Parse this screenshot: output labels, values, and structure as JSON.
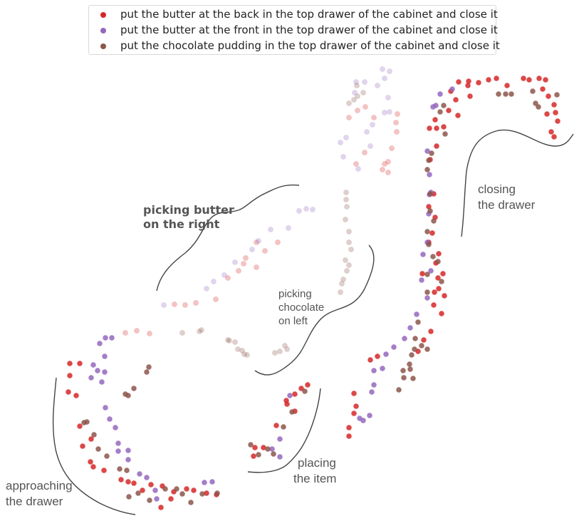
{
  "chart_data": {
    "type": "scatter",
    "title": "",
    "xlabel": "",
    "ylabel": "",
    "grid": false,
    "legend_position": "top-center",
    "series": [
      {
        "name": "put the butter at the back in the top drawer of the cabinet and close it",
        "color": "#d62728",
        "points": [
          [
            644,
            115
          ],
          [
            658,
            114
          ],
          [
            672,
            116
          ],
          [
            686,
            112
          ],
          [
            697,
            110
          ],
          [
            712,
            120
          ],
          [
            735,
            110
          ],
          [
            743,
            112
          ],
          [
            757,
            110
          ],
          [
            766,
            112
          ],
          [
            762,
            125
          ],
          [
            770,
            135
          ],
          [
            778,
            147
          ],
          [
            768,
            160
          ],
          [
            780,
            158
          ],
          [
            783,
            170
          ],
          [
            774,
            185
          ],
          [
            778,
            192
          ],
          [
            657,
            120
          ],
          [
            660,
            135
          ],
          [
            640,
            140
          ],
          [
            630,
            155
          ],
          [
            643,
            162
          ],
          [
            633,
            128
          ],
          [
            603,
            180
          ],
          [
            611,
            168
          ],
          [
            604,
            224
          ],
          [
            613,
            205
          ],
          [
            609,
            272
          ],
          [
            602,
            290
          ],
          [
            611,
            305
          ],
          [
            607,
            327
          ],
          [
            616,
            356
          ],
          [
            612,
            369
          ],
          [
            593,
            384
          ],
          [
            622,
            384
          ],
          [
            616,
            405
          ],
          [
            624,
            415
          ],
          [
            609,
            428
          ],
          [
            620,
            440
          ],
          [
            605,
            465
          ],
          [
            595,
            477
          ],
          [
            587,
            493
          ],
          [
            520,
            505
          ],
          [
            530,
            500
          ],
          [
            497,
            552
          ],
          [
            500,
            570
          ],
          [
            497,
            580
          ],
          [
            490,
            612
          ],
          [
            490,
            600
          ],
          [
            610,
            410
          ],
          [
            615,
            390
          ],
          [
            602,
            340
          ],
          [
            623,
            178
          ],
          [
            613,
            180
          ],
          [
            98,
            510
          ],
          [
            112,
            510
          ],
          [
            98,
            527
          ],
          [
            96,
            550
          ],
          [
            107,
            555
          ],
          [
            112,
            598
          ],
          [
            128,
            616
          ],
          [
            116,
            626
          ],
          [
            127,
            648
          ],
          [
            131,
            655
          ],
          [
            146,
            660
          ],
          [
            170,
            673
          ],
          [
            180,
            676
          ],
          [
            188,
            678
          ],
          [
            200,
            688
          ],
          [
            212,
            680
          ],
          [
            228,
            682
          ],
          [
            240,
            700
          ],
          [
            244,
            690
          ],
          [
            262,
            686
          ],
          [
            272,
            688
          ],
          [
            290,
            692
          ],
          [
            304,
            694
          ],
          [
            226,
            712
          ],
          [
            432,
            540
          ],
          [
            423,
            545
          ],
          [
            414,
            553
          ],
          [
            403,
            567
          ],
          [
            414,
            577
          ],
          [
            388,
            597
          ],
          [
            370,
            628
          ],
          [
            358,
            628
          ],
          [
            356,
            640
          ],
          [
            402,
            562
          ]
        ]
      },
      {
        "name": "put the butter at the front in the top drawer of the cabinet and close it",
        "color": "#9467bd",
        "points": [
          [
            618,
            132
          ],
          [
            635,
            125
          ],
          [
            612,
            148
          ],
          [
            608,
            150
          ],
          [
            600,
            212
          ],
          [
            603,
            245
          ],
          [
            605,
            270
          ],
          [
            602,
            300
          ],
          [
            600,
            340
          ],
          [
            605,
            380
          ],
          [
            592,
            393
          ],
          [
            600,
            418
          ],
          [
            585,
            441
          ],
          [
            576,
            460
          ],
          [
            568,
            475
          ],
          [
            553,
            487
          ],
          [
            542,
            497
          ],
          [
            525,
            520
          ],
          [
            537,
            517
          ],
          [
            525,
            540
          ],
          [
            522,
            550
          ],
          [
            505,
            587
          ],
          [
            510,
            590
          ],
          [
            519,
            583
          ],
          [
            594,
            357
          ],
          [
            603,
            273
          ],
          [
            148,
            474
          ],
          [
            157,
            474
          ],
          [
            140,
            482
          ],
          [
            147,
            500
          ],
          [
            131,
            512
          ],
          [
            137,
            520
          ],
          [
            147,
            522
          ],
          [
            128,
            530
          ],
          [
            143,
            536
          ],
          [
            148,
            572
          ],
          [
            154,
            588
          ],
          [
            162,
            600
          ],
          [
            166,
            622
          ],
          [
            166,
            633
          ],
          [
            180,
            632
          ],
          [
            180,
            645
          ],
          [
            196,
            665
          ],
          [
            206,
            670
          ],
          [
            218,
            688
          ],
          [
            220,
            700
          ],
          [
            287,
            677
          ],
          [
            298,
            676
          ],
          [
            382,
            630
          ],
          [
            393,
            616
          ],
          [
            393,
            641
          ],
          [
            407,
            555
          ]
        ]
      },
      {
        "name": "put the chocolate pudding in the top drawer of the cabinet and close it",
        "color": "#8c564b",
        "points": [
          [
            700,
            132
          ],
          [
            710,
            132
          ],
          [
            718,
            132
          ],
          [
            748,
            128
          ],
          [
            752,
            145
          ],
          [
            756,
            150
          ],
          [
            782,
            133
          ],
          [
            618,
            157
          ],
          [
            623,
            148
          ],
          [
            625,
            188
          ],
          [
            606,
            215
          ],
          [
            602,
            225
          ],
          [
            600,
            238
          ],
          [
            604,
            272
          ],
          [
            604,
            296
          ],
          [
            609,
            310
          ],
          [
            600,
            325
          ],
          [
            602,
            343
          ],
          [
            608,
            360
          ],
          [
            615,
            367
          ],
          [
            600,
            385
          ],
          [
            620,
            395
          ],
          [
            600,
            410
          ],
          [
            587,
            452
          ],
          [
            583,
            475
          ],
          [
            582,
            490
          ],
          [
            578,
            498
          ],
          [
            575,
            511
          ],
          [
            566,
            520
          ],
          [
            560,
            547
          ],
          [
            576,
            518
          ],
          [
            567,
            530
          ],
          [
            580,
            531
          ],
          [
            600,
            490
          ],
          [
            592,
            485
          ],
          [
            209,
            515
          ],
          [
            206,
            522
          ],
          [
            188,
            545
          ],
          [
            176,
            553
          ],
          [
            180,
            555
          ],
          [
            118,
            593
          ],
          [
            122,
            592
          ],
          [
            132,
            610
          ],
          [
            150,
            640
          ],
          [
            138,
            630
          ],
          [
            168,
            658
          ],
          [
            178,
            660
          ],
          [
            181,
            697
          ],
          [
            194,
            692
          ],
          [
            210,
            702
          ],
          [
            232,
            686
          ],
          [
            248,
            686
          ],
          [
            256,
            693
          ],
          [
            268,
            705
          ],
          [
            284,
            693
          ],
          [
            305,
            692
          ],
          [
            428,
            549
          ],
          [
            410,
            578
          ],
          [
            398,
            599
          ],
          [
            384,
            637
          ],
          [
            376,
            630
          ],
          [
            352,
            624
          ],
          [
            363,
            638
          ]
        ]
      },
      {
        "name": "",
        "color": "#d62728",
        "faded": true,
        "points": [
          [
            176,
            467
          ],
          [
            192,
            464
          ],
          [
            210,
            468
          ],
          [
            245,
            427
          ],
          [
            260,
            428
          ],
          [
            275,
            425
          ],
          [
            303,
            420
          ],
          [
            320,
            390
          ],
          [
            335,
            380
          ],
          [
            342,
            370
          ],
          [
            345,
            362
          ],
          [
            360,
            375
          ],
          [
            372,
            352
          ],
          [
            360,
            340
          ],
          [
            390,
            340
          ],
          [
            490,
            165
          ],
          [
            502,
            155
          ],
          [
            513,
            150
          ],
          [
            525,
            165
          ],
          [
            558,
            160
          ],
          [
            556,
            172
          ],
          [
            557,
            185
          ],
          [
            550,
            208
          ],
          [
            540,
            230
          ],
          [
            545,
            242
          ],
          [
            537,
            238
          ],
          [
            545,
            227
          ],
          [
            512,
            214
          ],
          [
            500,
            230
          ]
        ]
      },
      {
        "name": "",
        "color": "#9467bd",
        "faded": true,
        "points": [
          [
            230,
            428
          ],
          [
            300,
            395
          ],
          [
            290,
            405
          ],
          [
            315,
            386
          ],
          [
            330,
            368
          ],
          [
            354,
            350
          ],
          [
            363,
            338
          ],
          [
            380,
            322
          ],
          [
            405,
            320
          ],
          [
            420,
            296
          ],
          [
            430,
            293
          ],
          [
            439,
            294
          ],
          [
            537,
            97
          ],
          [
            547,
            100
          ],
          [
            540,
            110
          ],
          [
            530,
            120
          ],
          [
            545,
            137
          ],
          [
            540,
            158
          ],
          [
            547,
            157
          ],
          [
            523,
            175
          ],
          [
            515,
            185
          ],
          [
            520,
            205
          ],
          [
            503,
            237
          ],
          [
            482,
            220
          ],
          [
            478,
            200
          ],
          [
            486,
            193
          ],
          [
            498,
            130
          ],
          [
            500,
            115
          ],
          [
            512,
            115
          ]
        ]
      },
      {
        "name": "",
        "color": "#8c564b",
        "faded": true,
        "points": [
          [
            256,
            467
          ],
          [
            283,
            463
          ],
          [
            280,
            465
          ],
          [
            320,
            477
          ],
          [
            322,
            478
          ],
          [
            330,
            480
          ],
          [
            334,
            490
          ],
          [
            340,
            492
          ],
          [
            343,
            497
          ],
          [
            347,
            498
          ],
          [
            386,
            495
          ],
          [
            393,
            493
          ],
          [
            400,
            485
          ],
          [
            403,
            490
          ],
          [
            486,
            270
          ],
          [
            486,
            280
          ],
          [
            487,
            290
          ],
          [
            485,
            308
          ],
          [
            490,
            325
          ],
          [
            490,
            340
          ],
          [
            493,
            350
          ],
          [
            485,
            365
          ],
          [
            490,
            372
          ],
          [
            487,
            380
          ],
          [
            482,
            392
          ],
          [
            480,
            398
          ],
          [
            478,
            410
          ],
          [
            501,
            120
          ],
          [
            510,
            130
          ],
          [
            502,
            135
          ],
          [
            497,
            140
          ],
          [
            490,
            145
          ]
        ]
      }
    ]
  },
  "annotations": {
    "picking_butter": [
      "picking butter",
      "on the right"
    ],
    "picking_chocolate": [
      "picking",
      "chocolate",
      "on left"
    ],
    "closing": [
      "closing",
      "the drawer"
    ],
    "placing": [
      "placing",
      "the item"
    ],
    "approaching": [
      "approaching",
      "the drawer"
    ]
  }
}
